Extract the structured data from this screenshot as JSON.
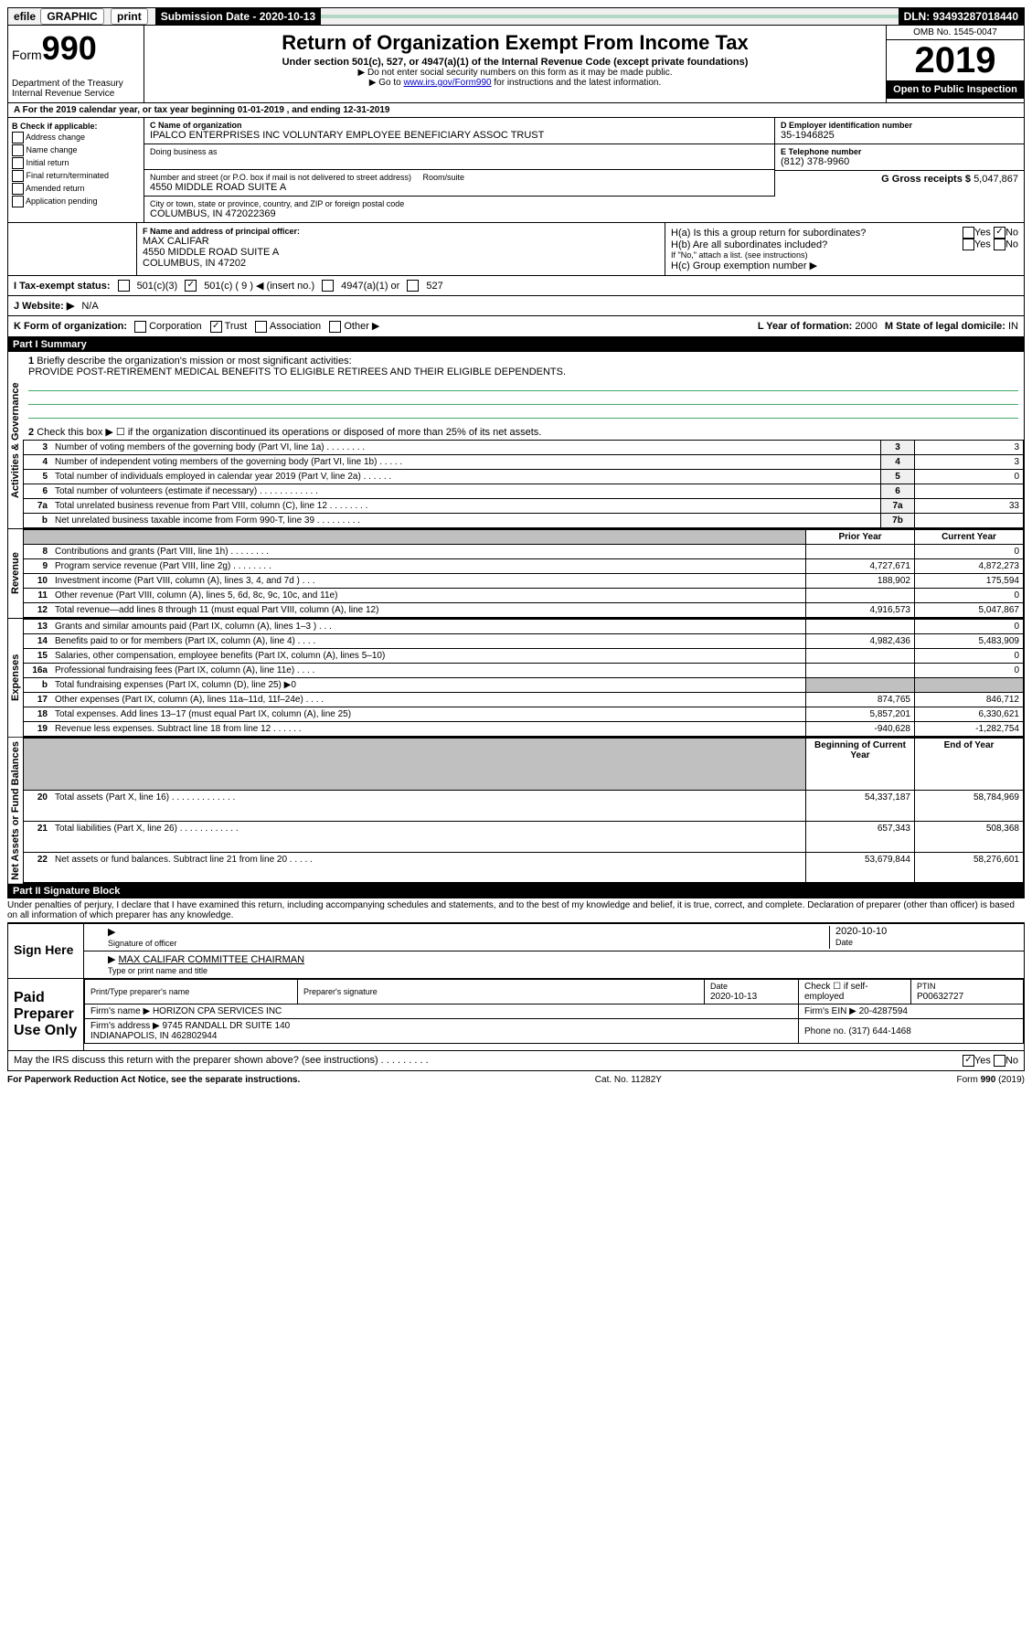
{
  "topbar": {
    "efile": "efile GRAPHIC print",
    "subdate_label": "Submission Date - 2020-10-13",
    "dln": "DLN: 93493287018440"
  },
  "header": {
    "form_label": "Form",
    "form_num": "990",
    "dept": "Department of the Treasury\nInternal Revenue Service",
    "title": "Return of Organization Exempt From Income Tax",
    "subtitle": "Under section 501(c), 527, or 4947(a)(1) of the Internal Revenue Code (except private foundations)",
    "note1": "▶ Do not enter social security numbers on this form as it may be made public.",
    "note2_pre": "▶ Go to ",
    "note2_link": "www.irs.gov/Form990",
    "note2_post": " for instructions and the latest information.",
    "omb": "OMB No. 1545-0047",
    "year": "2019",
    "inspection": "Open to Public Inspection"
  },
  "period": "A For the 2019 calendar year, or tax year beginning 01-01-2019   , and ending 12-31-2019",
  "section_b": {
    "label": "B Check if applicable:",
    "items": [
      "Address change",
      "Name change",
      "Initial return",
      "Final return/terminated",
      "Amended return",
      "Application pending"
    ]
  },
  "section_c": {
    "name_label": "C Name of organization",
    "name": "IPALCO ENTERPRISES INC VOLUNTARY EMPLOYEE BENEFICIARY ASSOC TRUST",
    "dba_label": "Doing business as",
    "addr_label": "Number and street (or P.O. box if mail is not delivered to street address)",
    "room_label": "Room/suite",
    "addr": "4550 MIDDLE ROAD SUITE A",
    "city_label": "City or town, state or province, country, and ZIP or foreign postal code",
    "city": "COLUMBUS, IN  472022369"
  },
  "section_d": {
    "label": "D Employer identification number",
    "value": "35-1946825"
  },
  "section_e": {
    "label": "E Telephone number",
    "value": "(812) 378-9960"
  },
  "section_g": {
    "label": "G Gross receipts $",
    "value": "5,047,867"
  },
  "section_f": {
    "label": "F Name and address of principal officer:",
    "name": "MAX CALIFAR",
    "addr1": "4550 MIDDLE ROAD SUITE A",
    "addr2": "COLUMBUS, IN  47202"
  },
  "section_h": {
    "ha": "H(a)  Is this a group return for subordinates?",
    "hb": "H(b)  Are all subordinates included?",
    "hb_note": "If \"No,\" attach a list. (see instructions)",
    "hc": "H(c)  Group exemption number ▶"
  },
  "tax_status": {
    "label": "I   Tax-exempt status:",
    "opt1": "501(c)(3)",
    "opt2": "501(c) ( 9 ) ◀ (insert no.)",
    "opt3": "4947(a)(1) or",
    "opt4": "527"
  },
  "website": {
    "label": "J   Website: ▶",
    "value": "N/A"
  },
  "korg": {
    "label": "K Form of organization:",
    "opts": [
      "Corporation",
      "Trust",
      "Association",
      "Other ▶"
    ],
    "l_label": "L Year of formation:",
    "l_value": "2000",
    "m_label": "M State of legal domicile:",
    "m_value": "IN"
  },
  "part1": {
    "header": "Part I     Summary",
    "q1": "Briefly describe the organization's mission or most significant activities:",
    "q1_ans": "PROVIDE POST-RETIREMENT MEDICAL BENEFITS TO ELIGIBLE RETIREES AND THEIR ELIGIBLE DEPENDENTS.",
    "q2": "Check this box ▶ ☐ if the organization discontinued its operations or disposed of more than 25% of its net assets.",
    "rows": [
      {
        "n": "3",
        "d": "Number of voting members of the governing body (Part VI, line 1a)  .    .    .    .    .    .    .    .",
        "l": "3",
        "v": "3"
      },
      {
        "n": "4",
        "d": "Number of independent voting members of the governing body (Part VI, line 1b)  .    .    .    .    .",
        "l": "4",
        "v": "3"
      },
      {
        "n": "5",
        "d": "Total number of individuals employed in calendar year 2019 (Part V, line 2a)  .    .    .    .    .    .",
        "l": "5",
        "v": "0"
      },
      {
        "n": "6",
        "d": "Total number of volunteers (estimate if necessary)  .    .    .    .    .    .    .    .    .    .    .    .",
        "l": "6",
        "v": ""
      },
      {
        "n": "7a",
        "d": "Total unrelated business revenue from Part VIII, column (C), line 12  .    .    .    .    .    .    .    .",
        "l": "7a",
        "v": "33"
      },
      {
        "n": "b",
        "d": "Net unrelated business taxable income from Form 990-T, line 39  .    .    .    .    .    .    .    .    .",
        "l": "7b",
        "v": ""
      }
    ],
    "col_headers": {
      "prior": "Prior Year",
      "current": "Current Year"
    },
    "rev_rows": [
      {
        "n": "8",
        "d": "Contributions and grants (Part VIII, line 1h)  .    .    .    .    .    .    .    .",
        "p": "",
        "c": "0"
      },
      {
        "n": "9",
        "d": "Program service revenue (Part VIII, line 2g)  .    .    .    .    .    .    .    .",
        "p": "4,727,671",
        "c": "4,872,273"
      },
      {
        "n": "10",
        "d": "Investment income (Part VIII, column (A), lines 3, 4, and 7d )  .    .    .",
        "p": "188,902",
        "c": "175,594"
      },
      {
        "n": "11",
        "d": "Other revenue (Part VIII, column (A), lines 5, 6d, 8c, 9c, 10c, and 11e)",
        "p": "",
        "c": "0"
      },
      {
        "n": "12",
        "d": "Total revenue—add lines 8 through 11 (must equal Part VIII, column (A), line 12)",
        "p": "4,916,573",
        "c": "5,047,867"
      }
    ],
    "exp_rows": [
      {
        "n": "13",
        "d": "Grants and similar amounts paid (Part IX, column (A), lines 1–3 )  .    .    .",
        "p": "",
        "c": "0"
      },
      {
        "n": "14",
        "d": "Benefits paid to or for members (Part IX, column (A), line 4)  .    .    .    .",
        "p": "4,982,436",
        "c": "5,483,909"
      },
      {
        "n": "15",
        "d": "Salaries, other compensation, employee benefits (Part IX, column (A), lines 5–10)",
        "p": "",
        "c": "0"
      },
      {
        "n": "16a",
        "d": "Professional fundraising fees (Part IX, column (A), line 11e)  .    .    .    .",
        "p": "",
        "c": "0"
      },
      {
        "n": "b",
        "d": "Total fundraising expenses (Part IX, column (D), line 25) ▶0",
        "p": "grey",
        "c": "grey"
      },
      {
        "n": "17",
        "d": "Other expenses (Part IX, column (A), lines 11a–11d, 11f–24e)  .    .    .    .",
        "p": "874,765",
        "c": "846,712"
      },
      {
        "n": "18",
        "d": "Total expenses. Add lines 13–17 (must equal Part IX, column (A), line 25)",
        "p": "5,857,201",
        "c": "6,330,621"
      },
      {
        "n": "19",
        "d": "Revenue less expenses. Subtract line 18 from line 12  .    .    .    .    .    .",
        "p": "-940,628",
        "c": "-1,282,754"
      }
    ],
    "net_headers": {
      "begin": "Beginning of Current Year",
      "end": "End of Year"
    },
    "net_rows": [
      {
        "n": "20",
        "d": "Total assets (Part X, line 16)  .    .    .    .    .    .    .    .    .    .    .    .    .",
        "p": "54,337,187",
        "c": "58,784,969"
      },
      {
        "n": "21",
        "d": "Total liabilities (Part X, line 26)  .    .    .    .    .    .    .    .    .    .    .    .",
        "p": "657,343",
        "c": "508,368"
      },
      {
        "n": "22",
        "d": "Net assets or fund balances. Subtract line 21 from line 20  .    .    .    .    .",
        "p": "53,679,844",
        "c": "58,276,601"
      }
    ],
    "side_labels": {
      "gov": "Activities & Governance",
      "rev": "Revenue",
      "exp": "Expenses",
      "net": "Net Assets or Fund Balances"
    }
  },
  "part2": {
    "header": "Part II    Signature Block",
    "perjury": "Under penalties of perjury, I declare that I have examined this return, including accompanying schedules and statements, and to the best of my knowledge and belief, it is true, correct, and complete. Declaration of preparer (other than officer) is based on all information of which preparer has any knowledge.",
    "sign_here": "Sign Here",
    "sig_officer": "Signature of officer",
    "date": "2020-10-10",
    "date_label": "Date",
    "name_title": "MAX CALIFAR  COMMITTEE CHAIRMAN",
    "name_title_label": "Type or print name and title",
    "paid_label": "Paid Preparer Use Only",
    "prep_name_label": "Print/Type preparer's name",
    "prep_sig_label": "Preparer's signature",
    "prep_date_label": "Date",
    "prep_date": "2020-10-13",
    "check_label": "Check ☐ if self-employed",
    "ptin_label": "PTIN",
    "ptin": "P00632727",
    "firm_name_label": "Firm's name    ▶",
    "firm_name": "HORIZON CPA SERVICES INC",
    "firm_ein_label": "Firm's EIN ▶",
    "firm_ein": "20-4287594",
    "firm_addr_label": "Firm's address ▶",
    "firm_addr": "9745 RANDALL DR SUITE 140\nINDIANAPOLIS, IN  462802944",
    "phone_label": "Phone no.",
    "phone": "(317) 644-1468",
    "discuss": "May the IRS discuss this return with the preparer shown above? (see instructions)  .    .    .    .    .    .    .    .    .",
    "paperwork": "For Paperwork Reduction Act Notice, see the separate instructions.",
    "cat": "Cat. No. 11282Y",
    "formfoot": "Form 990 (2019)"
  }
}
